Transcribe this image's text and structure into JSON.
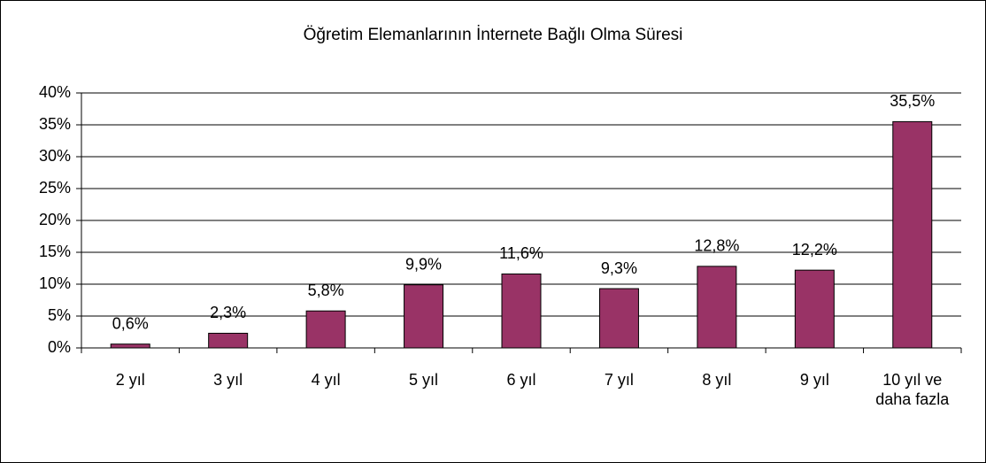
{
  "chart_data": {
    "type": "bar",
    "title": "Öğretim Elemanlarının İnternete Bağlı Olma Süresi",
    "categories": [
      "2 yıl",
      "3 yıl",
      "4 yıl",
      "5 yıl",
      "6 yıl",
      "7 yıl",
      "8 yıl",
      "9 yıl",
      "10 yıl ve daha fazla"
    ],
    "values": [
      0.6,
      2.3,
      5.8,
      9.9,
      11.6,
      9.3,
      12.8,
      12.2,
      35.5
    ],
    "value_labels": [
      "0,6%",
      "2,3%",
      "5,8%",
      "9,9%",
      "11,6%",
      "9,3%",
      "12,8%",
      "12,2%",
      "35,5%"
    ],
    "color": "#993366",
    "ylim": [
      0,
      40
    ],
    "yticks": [
      {
        "value": 0,
        "label": "0%"
      },
      {
        "value": 5,
        "label": "5%"
      },
      {
        "value": 10,
        "label": "10%"
      },
      {
        "value": 15,
        "label": "15%"
      },
      {
        "value": 20,
        "label": "20%"
      },
      {
        "value": 25,
        "label": "25%"
      },
      {
        "value": 30,
        "label": "30%"
      },
      {
        "value": 35,
        "label": "35%"
      },
      {
        "value": 40,
        "label": "40%"
      }
    ],
    "grid": true
  }
}
